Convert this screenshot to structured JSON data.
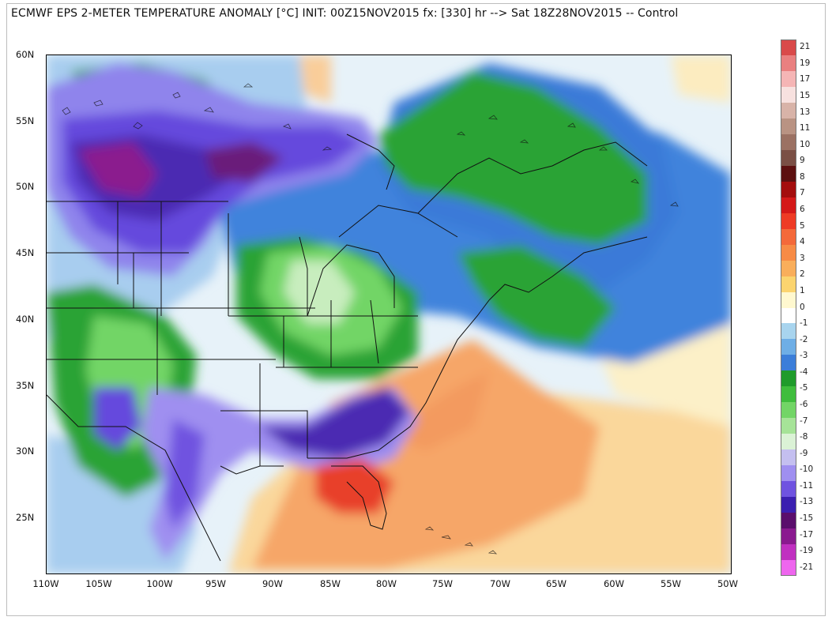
{
  "title": "ECMWF EPS 2-METER TEMPERATURE ANOMALY [°C] INIT: 00Z15NOV2015 fx: [330] hr --> Sat 18Z28NOV2015 -- Control",
  "axes": {
    "lat_labels": [
      "60N",
      "55N",
      "50N",
      "45N",
      "40N",
      "35N",
      "30N",
      "25N"
    ],
    "lon_labels": [
      "110W",
      "105W",
      "100W",
      "95W",
      "90W",
      "85W",
      "80W",
      "75W",
      "70W",
      "65W",
      "60W",
      "55W",
      "50W"
    ]
  },
  "legend": {
    "labels": [
      "21",
      "19",
      "17",
      "15",
      "13",
      "11",
      "10",
      "9",
      "8",
      "7",
      "6",
      "5",
      "4",
      "3",
      "2",
      "1",
      "0",
      "-1",
      "-2",
      "-3",
      "-4",
      "-5",
      "-6",
      "-7",
      "-8",
      "-9",
      "-10",
      "-11",
      "-13",
      "-15",
      "-17",
      "-19",
      "-21"
    ],
    "colors": [
      "#d94a4a",
      "#e98080",
      "#f5b5b5",
      "#f7e1df",
      "#d8b3a8",
      "#b99383",
      "#9b7163",
      "#7a4f45",
      "#5c1010",
      "#a40d0d",
      "#d41919",
      "#ee3b25",
      "#f4693a",
      "#f78b46",
      "#f9ae5b",
      "#fbd46f",
      "#fff8cf",
      "#ffffff",
      "#a8d4ee",
      "#6eaee6",
      "#3c7ed9",
      "#1f9b2b",
      "#3fbd3d",
      "#72d566",
      "#a6e398",
      "#dbf2d6",
      "#c4bff0",
      "#9f8ff0",
      "#6f53e0",
      "#3b1fb0",
      "#5a0e6c",
      "#8a1a8f",
      "#c030c0",
      "#ee66ee"
    ]
  },
  "map": {
    "colors": {
      "ocean_warm": "#f6a668",
      "hot_spot": "#e8412c",
      "cold_core": "#4b2ab2",
      "very_cold": "#7a1a7d",
      "green_band": "#2aa334",
      "blue": "#3573d8",
      "light_blue": "#a8cdef"
    }
  }
}
